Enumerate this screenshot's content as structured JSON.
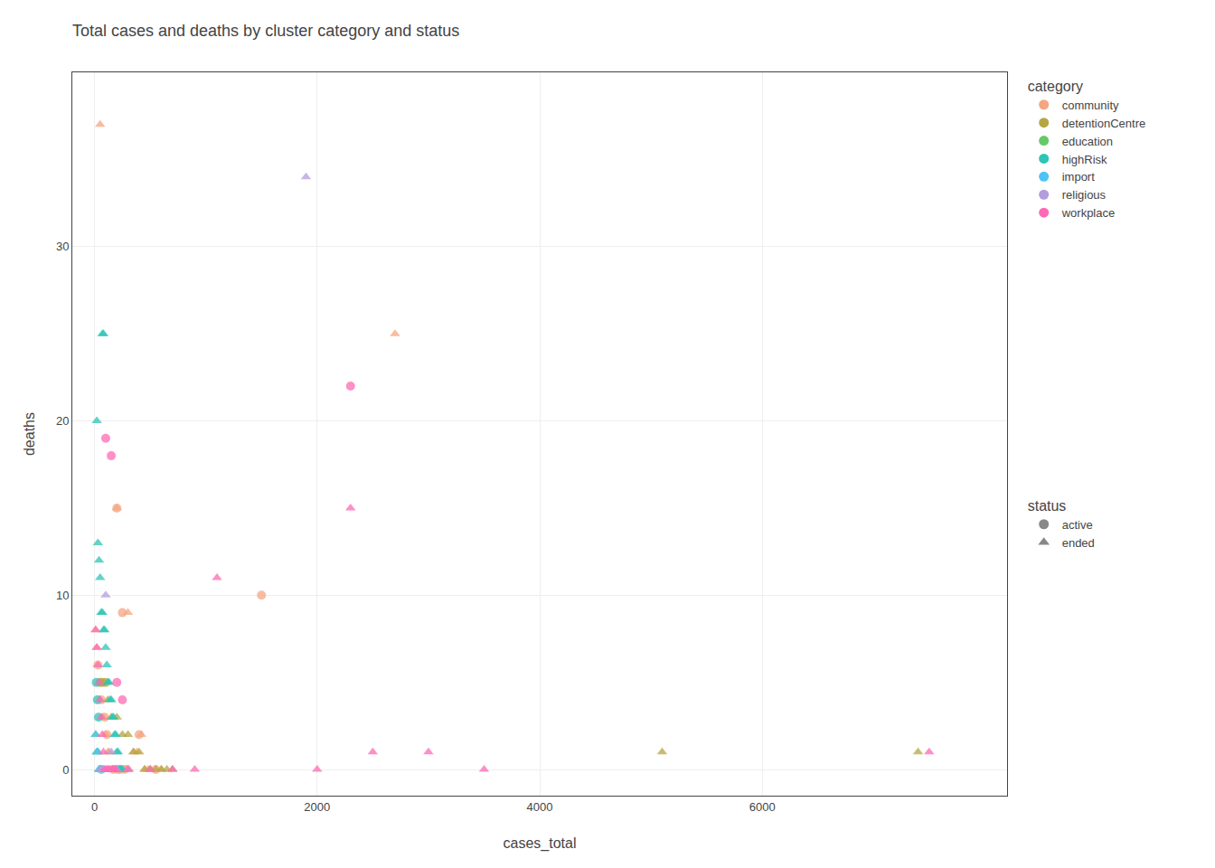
{
  "chart_data": {
    "type": "scatter",
    "title": "Total cases and deaths by cluster category and status",
    "xlabel": "cases_total",
    "ylabel": "deaths",
    "xlim": [
      -200,
      8200
    ],
    "ylim": [
      -1.5,
      40
    ],
    "xticks": [
      0,
      2000,
      4000,
      6000
    ],
    "yticks": [
      0,
      10,
      20,
      30
    ],
    "grid": true,
    "legend_title": "category",
    "series": [
      {
        "name": "community",
        "color": "#F4A582",
        "x": [
          50,
          200,
          200,
          250,
          300,
          1500,
          2700,
          10,
          20,
          30,
          40,
          60,
          80,
          90,
          100,
          110,
          120,
          130,
          150,
          160,
          170,
          180,
          190,
          210,
          220,
          230,
          240,
          260,
          270,
          280,
          290,
          310,
          350,
          380,
          400,
          420,
          450,
          480,
          500,
          550,
          600
        ],
        "values": [
          37,
          15,
          15,
          9,
          9,
          10,
          25,
          8,
          7,
          6,
          5,
          4,
          3,
          3,
          2,
          2,
          1,
          1,
          0,
          0,
          0,
          0,
          0,
          0,
          0,
          0,
          0,
          0,
          0,
          0,
          0,
          0,
          1,
          1,
          2,
          2,
          0,
          0,
          0,
          0,
          0
        ],
        "status": [
          "ended",
          "ended",
          "active",
          "active",
          "ended",
          "active",
          "ended",
          "ended",
          "ended",
          "active",
          "ended",
          "active",
          "ended",
          "active",
          "ended",
          "active",
          "ended",
          "ended",
          "ended",
          "ended",
          "active",
          "ended",
          "ended",
          "active",
          "ended",
          "active",
          "ended",
          "ended",
          "active",
          "ended",
          "ended",
          "ended",
          "ended",
          "ended",
          "active",
          "ended",
          "ended",
          "ended",
          "ended",
          "active",
          "ended"
        ]
      },
      {
        "name": "detentionCentre",
        "color": "#B5A642",
        "x": [
          5100,
          7400,
          50,
          70,
          100,
          120,
          150,
          200,
          250,
          300,
          350,
          400,
          450,
          500,
          550,
          600,
          650,
          700
        ],
        "values": [
          1,
          1,
          5,
          5,
          5,
          4,
          3,
          3,
          2,
          2,
          1,
          1,
          0,
          0,
          0,
          0,
          0,
          0
        ],
        "status": [
          "ended",
          "ended",
          "active",
          "active",
          "active",
          "ended",
          "ended",
          "ended",
          "ended",
          "ended",
          "ended",
          "ended",
          "ended",
          "ended",
          "ended",
          "ended",
          "ended",
          "ended"
        ]
      },
      {
        "name": "education",
        "color": "#66C966",
        "x": [
          10,
          20,
          30,
          40,
          50,
          60
        ],
        "values": [
          2,
          1,
          1,
          0,
          0,
          0
        ],
        "status": [
          "ended",
          "ended",
          "ended",
          "ended",
          "ended",
          "ended"
        ]
      },
      {
        "name": "highRisk",
        "color": "#2EC4B6",
        "x": [
          70,
          80,
          20,
          30,
          40,
          50,
          60,
          70,
          80,
          90,
          100,
          110,
          120,
          130,
          140,
          150,
          160,
          170,
          180,
          190,
          200,
          210,
          220,
          230,
          240,
          250,
          15,
          25,
          35
        ],
        "values": [
          25,
          25,
          20,
          13,
          12,
          11,
          9,
          9,
          8,
          8,
          7,
          6,
          5,
          5,
          4,
          4,
          3,
          3,
          2,
          2,
          1,
          1,
          0,
          0,
          0,
          0,
          5,
          4,
          3
        ],
        "status": [
          "ended",
          "ended",
          "ended",
          "ended",
          "ended",
          "ended",
          "ended",
          "ended",
          "ended",
          "ended",
          "ended",
          "ended",
          "ended",
          "ended",
          "ended",
          "ended",
          "ended",
          "ended",
          "ended",
          "ended",
          "ended",
          "ended",
          "ended",
          "ended",
          "ended",
          "ended",
          "active",
          "active",
          "active"
        ]
      },
      {
        "name": "import",
        "color": "#4FC3F7",
        "x": [
          10,
          20,
          30,
          40,
          50,
          60,
          100,
          200
        ],
        "values": [
          2,
          1,
          1,
          0,
          0,
          0,
          0,
          0
        ],
        "status": [
          "ended",
          "ended",
          "ended",
          "ended",
          "ended",
          "active",
          "ended",
          "ended"
        ]
      },
      {
        "name": "religious",
        "color": "#B39DDB",
        "x": [
          1900,
          100,
          150,
          50,
          70,
          80,
          200,
          300
        ],
        "values": [
          34,
          10,
          1,
          0,
          0,
          0,
          0,
          0
        ],
        "status": [
          "ended",
          "ended",
          "ended",
          "ended",
          "ended",
          "ended",
          "ended",
          "ended"
        ]
      },
      {
        "name": "workplace",
        "color": "#FF69B4",
        "x": [
          2300,
          2300,
          100,
          150,
          200,
          250,
          10,
          20,
          30,
          40,
          50,
          60,
          70,
          80,
          90,
          110,
          120,
          130,
          140,
          160,
          170,
          180,
          190,
          300,
          500,
          700,
          900,
          1100,
          2000,
          2500,
          3000,
          3500,
          7500
        ],
        "values": [
          22,
          15,
          19,
          18,
          5,
          4,
          8,
          7,
          6,
          5,
          4,
          3,
          2,
          1,
          0,
          0,
          0,
          0,
          0,
          0,
          0,
          0,
          0,
          0,
          0,
          0,
          0,
          11,
          0,
          1,
          1,
          0,
          1
        ],
        "status": [
          "active",
          "ended",
          "active",
          "active",
          "active",
          "active",
          "ended",
          "ended",
          "ended",
          "ended",
          "ended",
          "ended",
          "ended",
          "ended",
          "ended",
          "ended",
          "ended",
          "ended",
          "ended",
          "ended",
          "ended",
          "ended",
          "ended",
          "ended",
          "ended",
          "ended",
          "ended",
          "ended",
          "ended",
          "ended",
          "ended",
          "ended",
          "ended"
        ]
      }
    ],
    "status_legend": {
      "title": "status",
      "color": "#888888",
      "entries": [
        {
          "name": "active",
          "marker": "circle"
        },
        {
          "name": "ended",
          "marker": "triangle-up"
        }
      ]
    }
  }
}
